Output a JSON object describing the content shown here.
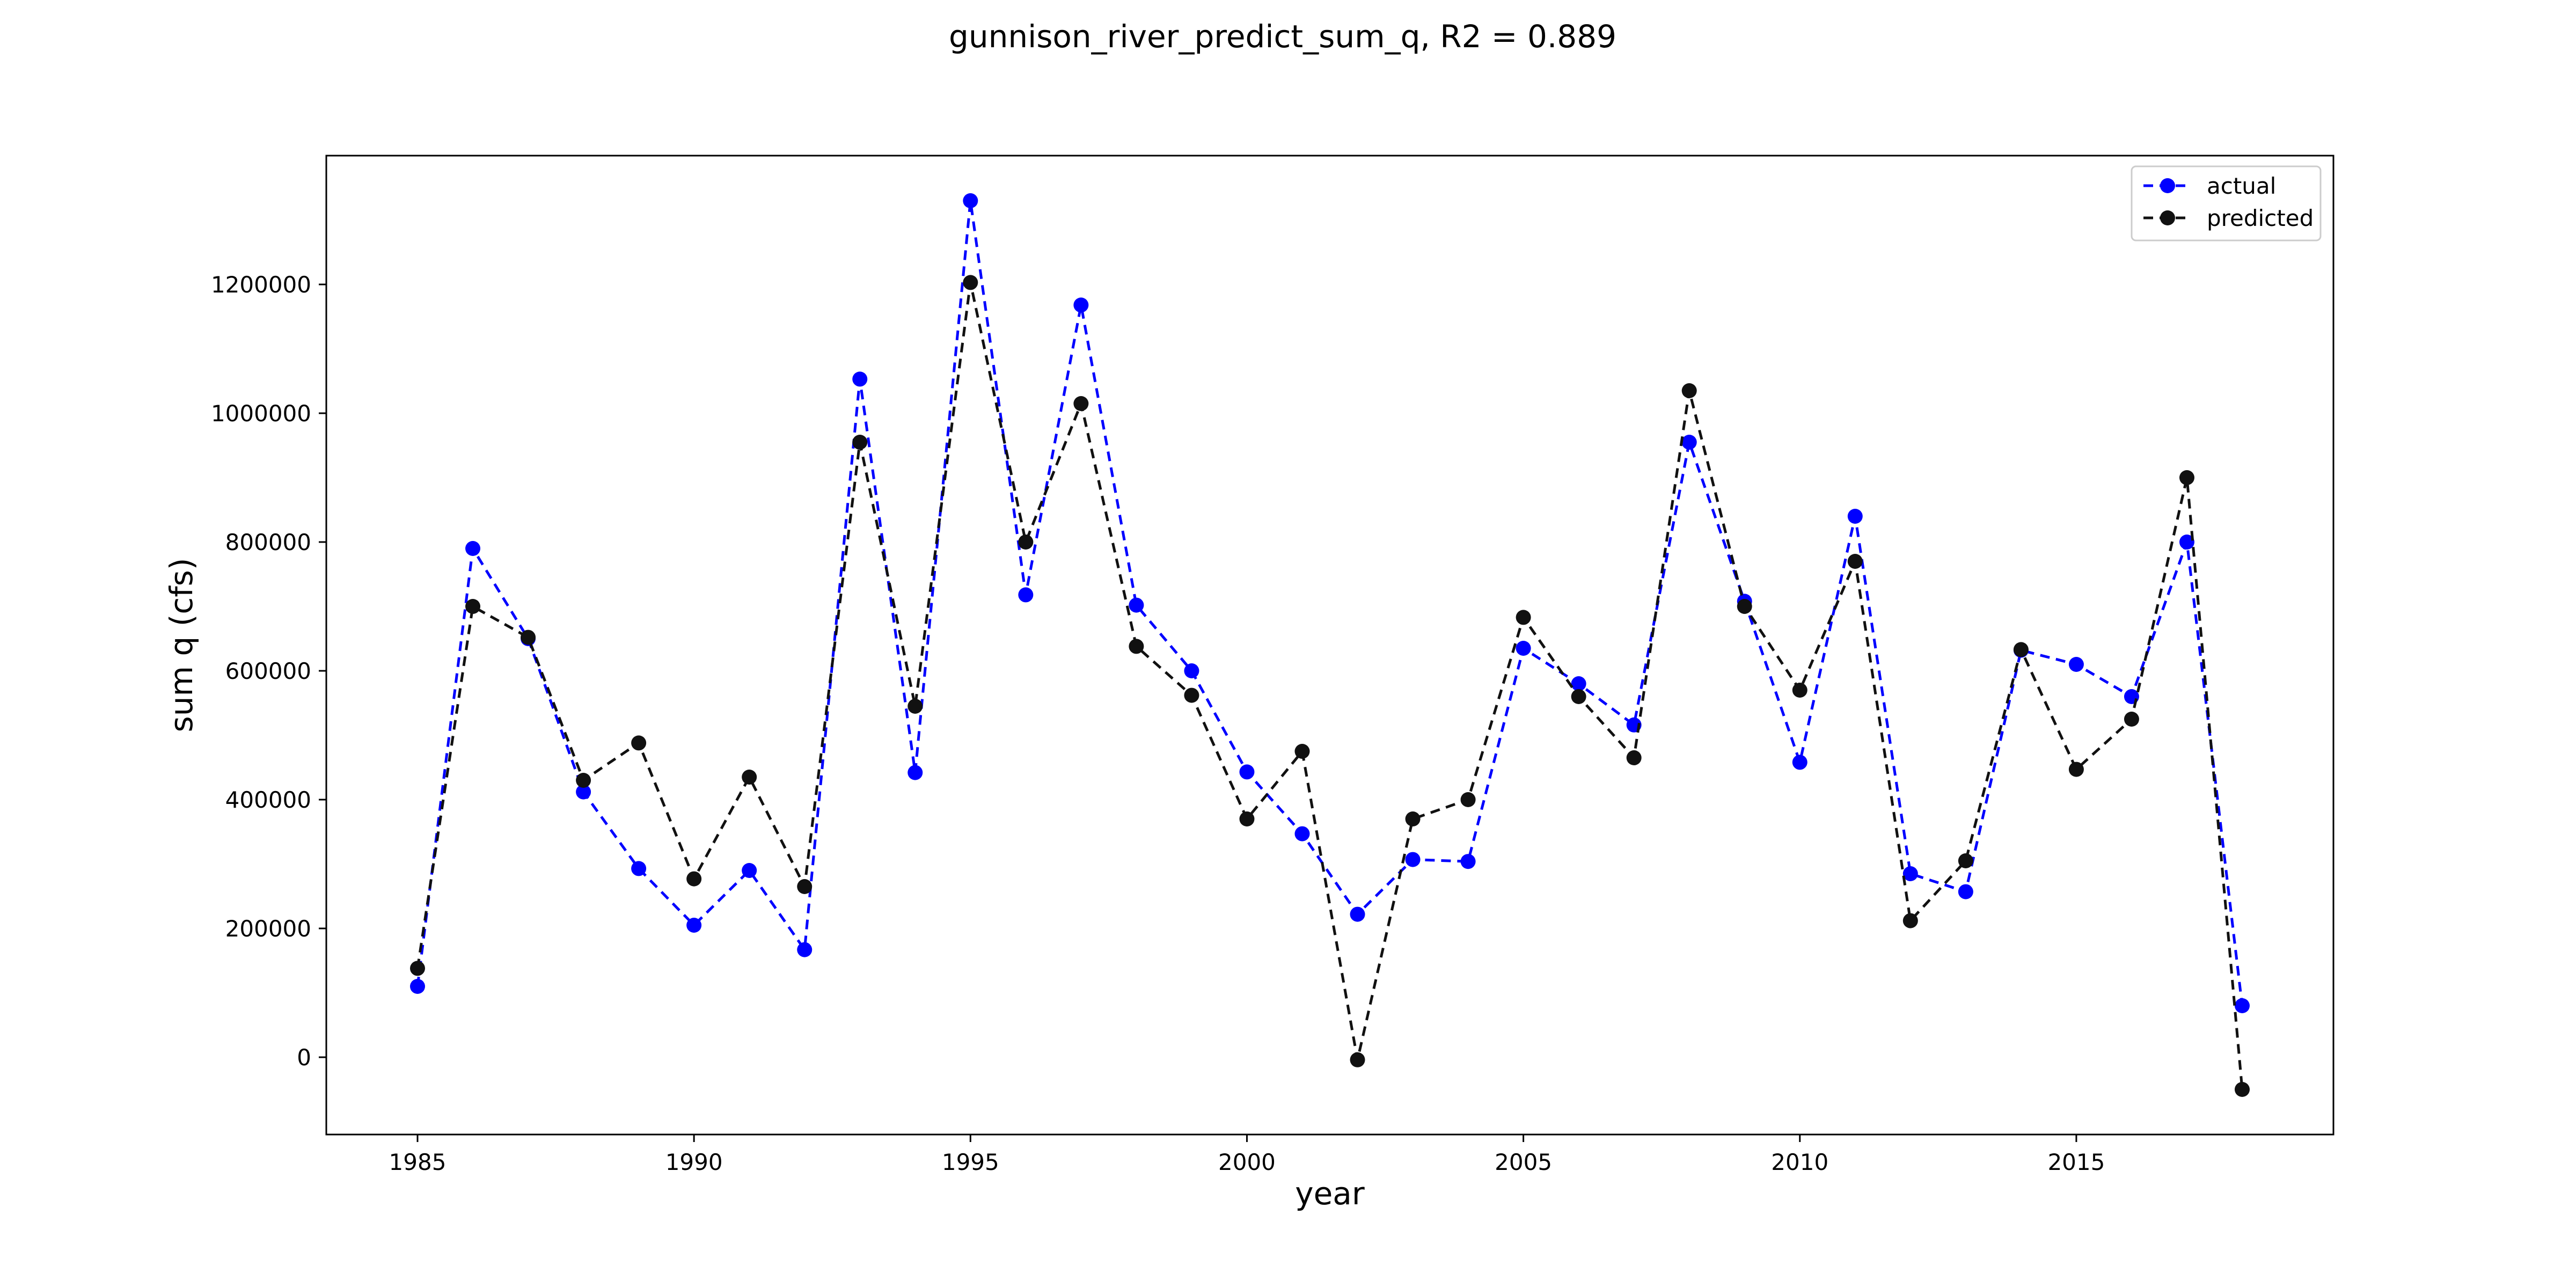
{
  "chart_data": {
    "type": "line",
    "title": "gunnison_river_predict_sum_q, R2 = 0.889",
    "xlabel": "year",
    "ylabel": "sum q (cfs)",
    "xlim": [
      1983.35,
      2019.65
    ],
    "ylim": [
      -120000,
      1400000
    ],
    "xticks": [
      1985,
      1990,
      1995,
      2000,
      2005,
      2010,
      2015
    ],
    "yticks": [
      0,
      200000,
      400000,
      600000,
      800000,
      1000000,
      1200000
    ],
    "grid": false,
    "legend": "upper-right",
    "x": [
      1985,
      1986,
      1987,
      1988,
      1989,
      1990,
      1991,
      1992,
      1993,
      1994,
      1995,
      1996,
      1997,
      1998,
      1999,
      2000,
      2001,
      2002,
      2003,
      2004,
      2005,
      2006,
      2007,
      2008,
      2009,
      2010,
      2011,
      2012,
      2013,
      2014,
      2015,
      2016,
      2017,
      2018
    ],
    "series": [
      {
        "name": "actual",
        "color": "#0000ff",
        "values": [
          110000,
          790000,
          650000,
          412000,
          293000,
          205000,
          290000,
          167000,
          1053000,
          442000,
          1330000,
          718000,
          1168000,
          702000,
          600000,
          443000,
          347000,
          222000,
          307000,
          304000,
          635000,
          580000,
          516000,
          955000,
          708000,
          458000,
          840000,
          285000,
          257000,
          632000,
          610000,
          560000,
          800000,
          80000
        ]
      },
      {
        "name": "predicted",
        "color": "#111111",
        "values": [
          138000,
          700000,
          652000,
          430000,
          488000,
          277000,
          435000,
          265000,
          955000,
          545000,
          1203000,
          800000,
          1015000,
          638000,
          562000,
          370000,
          475000,
          -4000,
          370000,
          400000,
          683000,
          560000,
          465000,
          1035000,
          700000,
          570000,
          770000,
          212000,
          305000,
          633000,
          447000,
          525000,
          900000,
          -50000
        ]
      }
    ]
  }
}
